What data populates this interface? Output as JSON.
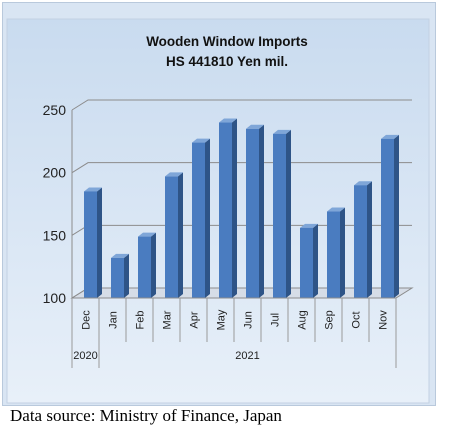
{
  "chart_data": {
    "type": "bar",
    "title": "Wooden Window Imports",
    "subtitle": "HS 441810 Yen mil.",
    "categories": [
      "Dec",
      "Jan",
      "Feb",
      "Mar",
      "Apr",
      "May",
      "Jun",
      "Jul",
      "Aug",
      "Sep",
      "Oct",
      "Nov"
    ],
    "values": [
      185,
      132,
      149,
      197,
      224,
      240,
      235,
      231,
      156,
      169,
      190,
      227
    ],
    "year_groups": [
      {
        "label": "2020",
        "count": 1
      },
      {
        "label": "2021",
        "count": 11
      }
    ],
    "yticks": [
      100,
      150,
      200,
      250
    ],
    "ylim": [
      100,
      250
    ],
    "grid": true,
    "legend": "none",
    "bar_color": "#4a7cc0"
  },
  "footer": {
    "source": "Data source: Ministry of Finance, Japan"
  }
}
